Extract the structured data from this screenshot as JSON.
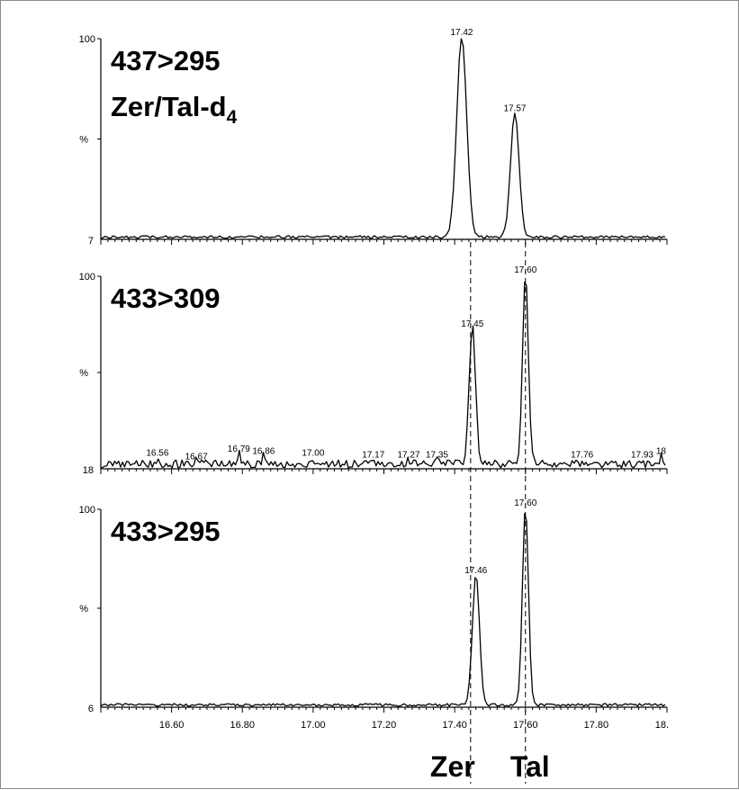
{
  "chart_data": [
    {
      "type": "line",
      "transition": "437>295",
      "subtitle": "Zer/Tal-d",
      "subtitle_sub": "4",
      "y_top_label": "100",
      "y_mid_label": "%",
      "y_bottom_label": "7",
      "xlim": [
        16.4,
        18.0
      ],
      "baseline_points": [],
      "peaks": [
        {
          "label": "17.42",
          "x": 17.42,
          "height": 100,
          "width": 0.028
        },
        {
          "label": "17.57",
          "x": 17.57,
          "height": 62,
          "width": 0.024
        }
      ]
    },
    {
      "type": "line",
      "transition": "433>309",
      "y_top_label": "100",
      "y_mid_label": "%",
      "y_bottom_label": "18",
      "xlim": [
        16.4,
        18.0
      ],
      "baseline_points": [
        {
          "label": "16.56",
          "x": 16.56,
          "height": 4
        },
        {
          "label": "16.67",
          "x": 16.67,
          "height": 2
        },
        {
          "label": "16.79",
          "x": 16.79,
          "height": 6
        },
        {
          "label": "16.86",
          "x": 16.86,
          "height": 5
        },
        {
          "label": "17.00",
          "x": 17.0,
          "height": 4
        },
        {
          "label": "17.17",
          "x": 17.17,
          "height": 3
        },
        {
          "label": "17.27",
          "x": 17.27,
          "height": 3
        },
        {
          "label": "17.35",
          "x": 17.35,
          "height": 3
        },
        {
          "label": "17.76",
          "x": 17.76,
          "height": 3
        },
        {
          "label": "17.93",
          "x": 17.93,
          "height": 3
        },
        {
          "label": "18",
          "x": 17.985,
          "height": 5
        }
      ],
      "peaks": [
        {
          "label": "17.45",
          "x": 17.45,
          "height": 72,
          "width": 0.018
        },
        {
          "label": "17.60",
          "x": 17.6,
          "height": 100,
          "width": 0.016
        }
      ]
    },
    {
      "type": "line",
      "transition": "433>295",
      "y_top_label": "100",
      "y_mid_label": "%",
      "y_bottom_label": "6",
      "xlim": [
        16.4,
        18.0
      ],
      "baseline_points": [],
      "peaks": [
        {
          "label": "17.46",
          "x": 17.46,
          "height": 66,
          "width": 0.02
        },
        {
          "label": "17.60",
          "x": 17.6,
          "height": 100,
          "width": 0.017
        }
      ]
    }
  ],
  "x_axis": {
    "ticks": [
      16.6,
      16.8,
      17.0,
      17.2,
      17.4,
      17.6,
      17.8,
      18.0
    ],
    "tick_labels": [
      "16.60",
      "16.80",
      "17.00",
      "17.20",
      "17.40",
      "17.60",
      "17.80",
      "18."
    ]
  },
  "markers": [
    {
      "label": "Zer",
      "x": 17.445
    },
    {
      "label": "Tal",
      "x": 17.6
    }
  ]
}
